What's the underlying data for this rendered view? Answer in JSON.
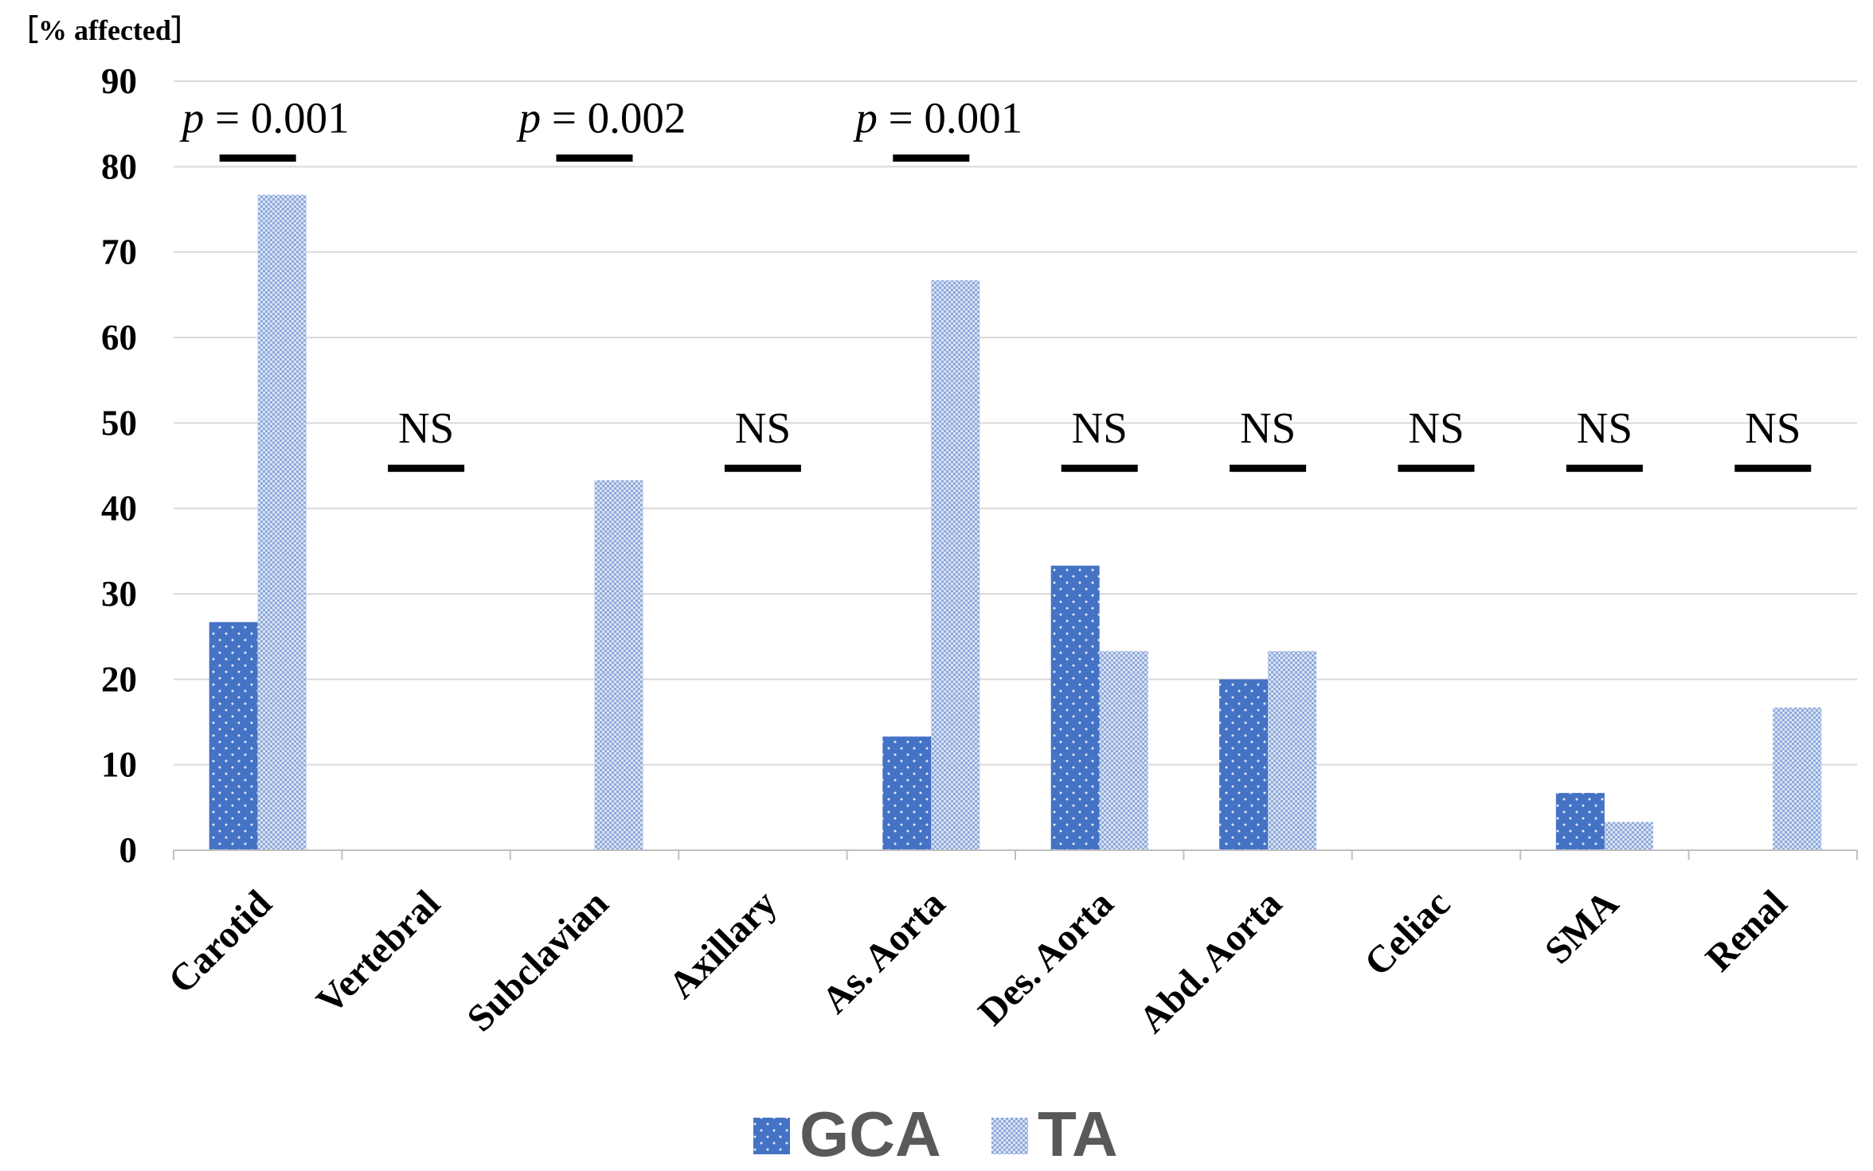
{
  "chart_data": {
    "type": "bar",
    "ylabel": "［% affected］",
    "ylim": [
      0,
      90
    ],
    "yticks": [
      0,
      10,
      20,
      30,
      40,
      50,
      60,
      70,
      80,
      90
    ],
    "grid": true,
    "legend_position": "bottom",
    "categories": [
      "Carotid",
      "Vertebral",
      "Subclavian",
      "Axillary",
      "As. Aorta",
      "Des. Aorta",
      "Abd. Aorta",
      "Celiac",
      "SMA",
      "Renal"
    ],
    "series": [
      {
        "name": "GCA",
        "color": "#4472C4",
        "pattern": "dotted",
        "values": [
          26.7,
          0,
          0,
          0,
          13.3,
          33.3,
          20.0,
          0,
          6.7,
          0
        ]
      },
      {
        "name": "TA",
        "color": "#8FAADC",
        "pattern": "checked",
        "values": [
          76.7,
          0,
          43.3,
          0,
          66.7,
          23.3,
          23.3,
          0,
          3.3,
          16.7
        ]
      }
    ],
    "annotations": [
      {
        "category": "Carotid",
        "p_label": "p",
        "p_value": " = 0.001",
        "bar_level": 81
      },
      {
        "category": "Vertebral",
        "text": "NS",
        "bar_level": 44.7
      },
      {
        "category": "Subclavian",
        "p_label": "p",
        "p_value": " = 0.002",
        "bar_level": 81
      },
      {
        "category": "Axillary",
        "text": "NS",
        "bar_level": 44.7
      },
      {
        "category": "As. Aorta",
        "p_label": "p",
        "p_value": " = 0.001",
        "bar_level": 81
      },
      {
        "category": "Des. Aorta",
        "text": "NS",
        "bar_level": 44.7
      },
      {
        "category": "Abd. Aorta",
        "text": "NS",
        "bar_level": 44.7
      },
      {
        "category": "Celiac",
        "text": "NS",
        "bar_level": 44.7
      },
      {
        "category": "SMA",
        "text": "NS",
        "bar_level": 44.7
      },
      {
        "category": "Renal",
        "text": "NS",
        "bar_level": 44.7
      }
    ]
  }
}
